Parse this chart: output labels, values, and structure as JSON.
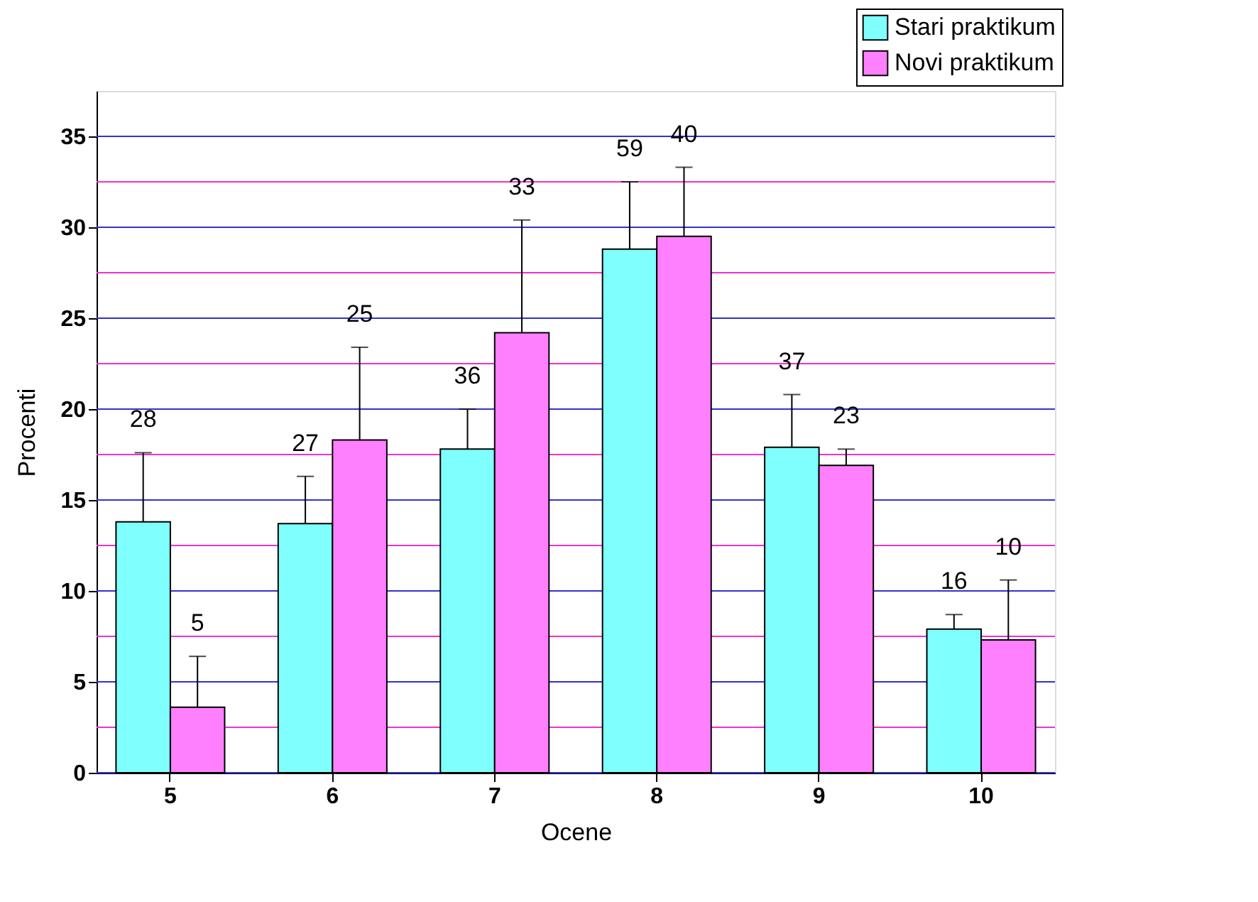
{
  "chart_data": {
    "type": "bar",
    "xlabel": "Ocene",
    "ylabel": "Procenti",
    "categories": [
      "5",
      "6",
      "7",
      "8",
      "9",
      "10"
    ],
    "series": [
      {
        "name": "Stari praktikum",
        "color": "#80ffff",
        "values": [
          13.8,
          13.7,
          17.8,
          28.8,
          17.9,
          7.9
        ],
        "errors": [
          [
            13.8,
            17.6
          ],
          [
            13.7,
            16.3
          ],
          [
            17.8,
            20.0
          ],
          [
            28.8,
            32.5
          ],
          [
            17.9,
            20.8
          ],
          [
            7.9,
            8.7
          ]
        ]
      },
      {
        "name": "Novi praktikum",
        "color": "#ff80ff",
        "values": [
          3.6,
          18.3,
          24.2,
          29.5,
          16.9,
          7.3
        ],
        "errors": [
          [
            3.6,
            6.4
          ],
          [
            18.3,
            23.4
          ],
          [
            24.2,
            30.4
          ],
          [
            29.5,
            33.3
          ],
          [
            16.9,
            17.8
          ],
          [
            7.3,
            10.6
          ]
        ]
      }
    ],
    "annotations": [
      "28",
      "5",
      "27",
      "25",
      "36",
      "33",
      "59",
      "40",
      "37",
      "23",
      "16",
      "10"
    ],
    "ylim": [
      0,
      37.5
    ],
    "yticks": [
      0,
      {
        "value": 2.5,
        "label": null
      },
      5,
      {
        "value": 7.5,
        "label": null
      },
      10,
      {
        "value": 12.5,
        "label": null
      },
      15,
      {
        "value": 17.5,
        "label": null
      },
      20,
      {
        "value": 22.5,
        "label": null
      },
      25,
      {
        "value": 27.5,
        "label": null
      },
      30,
      {
        "value": 32.5,
        "label": null
      },
      35
    ],
    "grid": "y",
    "legend": "top right"
  }
}
